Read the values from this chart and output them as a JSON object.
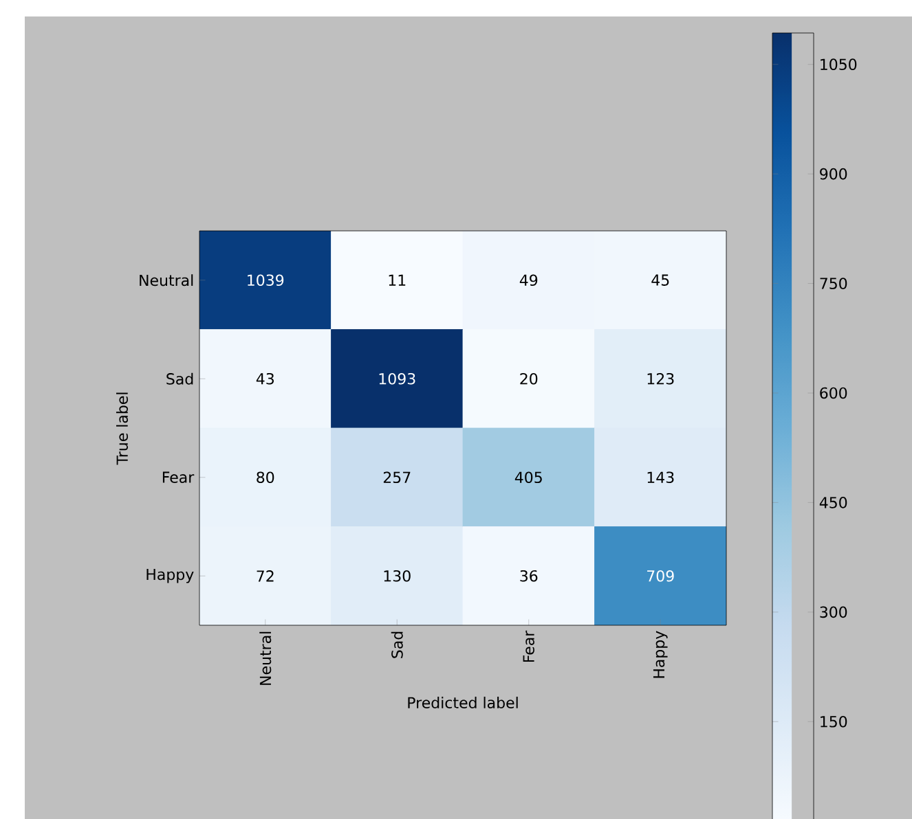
{
  "chart_data": {
    "type": "heatmap",
    "xlabel": "Predicted label",
    "ylabel": "True label",
    "categories": [
      "Neutral",
      "Sad",
      "Fear",
      "Happy"
    ],
    "y_categories": [
      "Neutral",
      "Sad",
      "Fear",
      "Happy"
    ],
    "cells": [
      [
        1039,
        11,
        49,
        45
      ],
      [
        43,
        1093,
        20,
        123
      ],
      [
        80,
        257,
        405,
        143
      ],
      [
        72,
        130,
        36,
        709
      ]
    ],
    "data_labels": true,
    "clim": [
      11,
      1093
    ],
    "cticks": [
      150,
      300,
      450,
      600,
      750,
      900,
      1050
    ]
  }
}
